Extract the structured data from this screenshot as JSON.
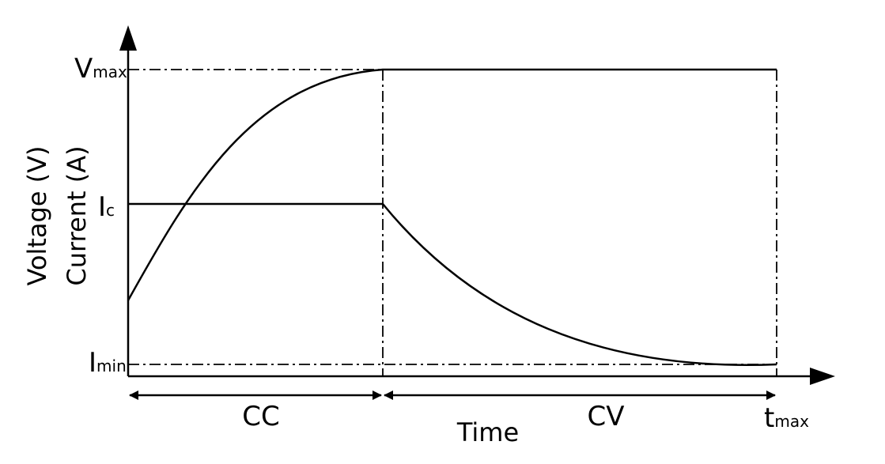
{
  "diagram": {
    "y_axis_title_line1": "Voltage (V)",
    "y_axis_title_line2": "Current (A)",
    "x_axis_title": "Time",
    "labels": {
      "vmax_main": "V",
      "vmax_sub": "max",
      "ic_main": "I",
      "ic_sub": "c",
      "imin_main": "I",
      "imin_sub": "min",
      "tmax_main": "t",
      "tmax_sub": "max"
    },
    "phases": {
      "cc": "CC",
      "cv": "CV"
    },
    "colors": {
      "stroke": "#000000",
      "background": "#ffffff"
    }
  }
}
